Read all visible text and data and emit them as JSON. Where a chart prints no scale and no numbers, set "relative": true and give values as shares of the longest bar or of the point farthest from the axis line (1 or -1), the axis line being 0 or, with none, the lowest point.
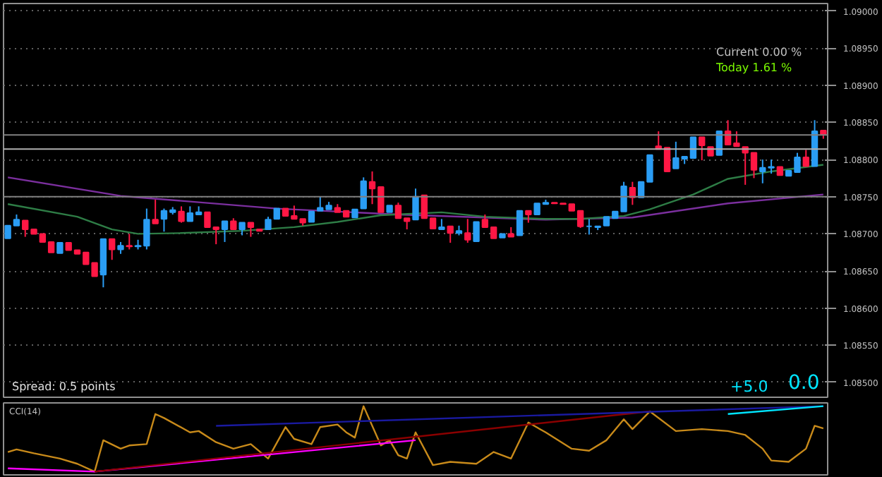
{
  "chart_data": [
    {
      "type": "candlestick",
      "categories": [
        null,
        null,
        null,
        null,
        null,
        null,
        null,
        null,
        null,
        null,
        null,
        null,
        null,
        null,
        null,
        null,
        null,
        null,
        null,
        null,
        null,
        null,
        null,
        null,
        null,
        null,
        null,
        null,
        null,
        null,
        null,
        null,
        null,
        null,
        null,
        null,
        null,
        null,
        null,
        null,
        null,
        null,
        null,
        null,
        null,
        null,
        null,
        null,
        null,
        null,
        null,
        null,
        null,
        null,
        null,
        null,
        null,
        null,
        null,
        null,
        null,
        null,
        null,
        null,
        null,
        null,
        null,
        null,
        null,
        null,
        null,
        null,
        null,
        null,
        null,
        null,
        null,
        null,
        null,
        null,
        null,
        null,
        null,
        null,
        null,
        null,
        null,
        null,
        null,
        null,
        null,
        null,
        null,
        null,
        null
      ],
      "ohlc": [
        [
          1.08694,
          1.08711,
          1.08694,
          1.08711
        ],
        [
          1.08711,
          1.08726,
          1.08711,
          1.08719
        ],
        [
          1.08718,
          1.08718,
          1.08696,
          1.08706
        ],
        [
          1.08706,
          1.08706,
          1.087,
          1.087
        ],
        [
          1.087,
          1.087,
          1.08689,
          1.08689
        ],
        [
          1.08689,
          1.08689,
          1.08675,
          1.08675
        ],
        [
          1.08674,
          1.08688,
          1.08674,
          1.08688
        ],
        [
          1.08688,
          1.08688,
          1.08678,
          1.08678
        ],
        [
          1.08678,
          1.08678,
          1.08673,
          1.08673
        ],
        [
          1.08675,
          1.08675,
          1.08659,
          1.08659
        ],
        [
          1.08661,
          1.08661,
          1.08643,
          1.08643
        ],
        [
          1.08645,
          1.08693,
          1.08628,
          1.08693
        ],
        [
          1.08693,
          1.08693,
          1.08665,
          1.08679
        ],
        [
          1.08679,
          1.08689,
          1.08673,
          1.08684
        ],
        [
          1.08684,
          1.087,
          1.08679,
          1.08683
        ],
        [
          1.08683,
          1.08692,
          1.08679,
          1.08684
        ],
        [
          1.08684,
          1.08734,
          1.08679,
          1.08719
        ],
        [
          1.08719,
          1.08746,
          1.08714,
          1.08714
        ],
        [
          1.0872,
          1.08734,
          1.08703,
          1.08731
        ],
        [
          1.08729,
          1.08736,
          1.08726,
          1.08732
        ],
        [
          1.0873,
          1.08737,
          1.08715,
          1.08717
        ],
        [
          1.08717,
          1.08737,
          1.08717,
          1.08728
        ],
        [
          1.08726,
          1.08737,
          1.08726,
          1.08729
        ],
        [
          1.08729,
          1.08729,
          1.08709,
          1.08709
        ],
        [
          1.08709,
          1.08709,
          1.08686,
          1.08706
        ],
        [
          1.08706,
          1.08717,
          1.08689,
          1.08717
        ],
        [
          1.08717,
          1.08721,
          1.08706,
          1.08706
        ],
        [
          1.08706,
          1.08715,
          1.08698,
          1.08715
        ],
        [
          1.08715,
          1.08715,
          1.08696,
          1.08709
        ],
        [
          1.08706,
          1.08706,
          1.08704,
          1.08704
        ],
        [
          1.08706,
          1.08723,
          1.08706,
          1.08719
        ],
        [
          1.0872,
          1.08734,
          1.0872,
          1.08734
        ],
        [
          1.08734,
          1.08734,
          1.08724,
          1.08724
        ],
        [
          1.08724,
          1.08738,
          1.0872,
          1.0872
        ],
        [
          1.0872,
          1.0872,
          1.08711,
          1.08715
        ],
        [
          1.08716,
          1.0873,
          1.08716,
          1.0873
        ],
        [
          1.08731,
          1.0875,
          1.08731,
          1.08735
        ],
        [
          1.08733,
          1.08743,
          1.08733,
          1.08738
        ],
        [
          1.08735,
          1.0874,
          1.08729,
          1.08729
        ],
        [
          1.08731,
          1.08731,
          1.08723,
          1.08723
        ],
        [
          1.08722,
          1.08733,
          1.08722,
          1.08733
        ],
        [
          1.08734,
          1.08776,
          1.08734,
          1.08771
        ],
        [
          1.0877,
          1.08784,
          1.0874,
          1.08761
        ],
        [
          1.08763,
          1.08763,
          1.08729,
          1.08729
        ],
        [
          1.08729,
          1.08738,
          1.08729,
          1.08738
        ],
        [
          1.08738,
          1.08742,
          1.08721,
          1.08721
        ],
        [
          1.08721,
          1.08721,
          1.08706,
          1.08717
        ],
        [
          1.08719,
          1.08761,
          1.08719,
          1.0875
        ],
        [
          1.08752,
          1.08752,
          1.08721,
          1.08721
        ],
        [
          1.08721,
          1.08721,
          1.08707,
          1.08707
        ],
        [
          1.08706,
          1.0872,
          1.08706,
          1.08709
        ],
        [
          1.0871,
          1.0871,
          1.08688,
          1.08701
        ],
        [
          1.08701,
          1.08711,
          1.08698,
          1.08704
        ],
        [
          1.08701,
          1.0872,
          1.08688,
          1.08692
        ],
        [
          1.0869,
          1.08716,
          1.0869,
          1.08716
        ],
        [
          1.08719,
          1.08726,
          1.08709,
          1.08709
        ],
        [
          1.08709,
          1.08709,
          1.08694,
          1.08694
        ],
        [
          1.08695,
          1.087,
          1.08695,
          1.087
        ],
        [
          1.087,
          1.08709,
          1.08696,
          1.08696
        ],
        [
          1.08698,
          1.08731,
          1.08698,
          1.08731
        ],
        [
          1.08731,
          1.08731,
          1.08715,
          1.08726
        ],
        [
          1.08726,
          1.08741,
          1.08726,
          1.08741
        ],
        [
          1.0874,
          1.08746,
          1.0874,
          1.08742
        ],
        [
          1.08742,
          1.08742,
          1.08741,
          1.08741
        ],
        [
          1.08741,
          1.08741,
          1.0874,
          1.0874
        ],
        [
          1.0874,
          1.0874,
          1.08731,
          1.08731
        ],
        [
          1.08731,
          1.08731,
          1.08708,
          1.0871
        ],
        [
          1.0871,
          1.0872,
          1.08699,
          1.0871
        ],
        [
          1.08709,
          1.0871,
          1.08705,
          1.0871
        ],
        [
          1.08711,
          1.08723,
          1.08711,
          1.08723
        ],
        [
          1.08721,
          1.0873,
          1.08721,
          1.0873
        ],
        [
          1.0873,
          1.0877,
          1.0873,
          1.08764
        ],
        [
          1.08762,
          1.0877,
          1.08739,
          1.08749
        ],
        [
          1.08749,
          1.0877,
          1.08749,
          1.0877
        ],
        [
          1.0877,
          1.08806,
          1.0877,
          1.08806
        ],
        [
          1.08818,
          1.08838,
          1.08814,
          1.08814
        ],
        [
          1.08816,
          1.08816,
          1.08784,
          1.08784
        ],
        [
          1.08788,
          1.08824,
          1.08788,
          1.08802
        ],
        [
          1.08801,
          1.08804,
          1.08794,
          1.08804
        ],
        [
          1.08802,
          1.0883,
          1.08802,
          1.0883
        ],
        [
          1.0883,
          1.0883,
          1.08799,
          1.08819
        ],
        [
          1.08817,
          1.08817,
          1.08805,
          1.08805
        ],
        [
          1.08806,
          1.08838,
          1.08806,
          1.08838
        ],
        [
          1.08838,
          1.08853,
          1.0882,
          1.0882
        ],
        [
          1.08822,
          1.08838,
          1.08818,
          1.08818
        ],
        [
          1.08817,
          1.08817,
          1.08766,
          1.08809
        ],
        [
          1.08809,
          1.08809,
          1.08775,
          1.08786
        ],
        [
          1.08784,
          1.088,
          1.08768,
          1.08789
        ],
        [
          1.08789,
          1.088,
          1.08781,
          1.0879
        ],
        [
          1.0879,
          1.0879,
          1.08779,
          1.08779
        ],
        [
          1.08778,
          1.08785,
          1.08778,
          1.08785
        ],
        [
          1.08783,
          1.08809,
          1.08783,
          1.08803
        ],
        [
          1.08803,
          1.08813,
          1.08791,
          1.08791
        ],
        [
          1.08791,
          1.08853,
          1.08791,
          1.08838
        ],
        [
          1.08839,
          1.08839,
          1.08828,
          1.08834
        ]
      ],
      "colors": [
        "#2a9df4",
        "#2a9df4",
        "#ff1744",
        "#ff1744",
        "#ff1744",
        "#ff1744",
        "#2a9df4",
        "#ff1744",
        "#ff1744",
        "#ff1744",
        "#ff1744",
        "#2a9df4",
        "#ff1744",
        "#2a9df4",
        "#ff1744",
        "#2a9df4",
        "#2a9df4",
        "#ff1744",
        "#2a9df4",
        "#2a9df4",
        "#ff1744",
        "#2a9df4",
        "#2a9df4",
        "#ff1744",
        "#ff1744",
        "#2a9df4",
        "#ff1744",
        "#2a9df4",
        "#ff1744",
        "#ff1744",
        "#2a9df4",
        "#2a9df4",
        "#ff1744",
        "#ff1744",
        "#ff1744",
        "#2a9df4",
        "#2a9df4",
        "#2a9df4",
        "#ff1744",
        "#ff1744",
        "#2a9df4",
        "#2a9df4",
        "#ff1744",
        "#ff1744",
        "#2a9df4",
        "#ff1744",
        "#ff1744",
        "#2a9df4",
        "#ff1744",
        "#ff1744",
        "#2a9df4",
        "#ff1744",
        "#2a9df4",
        "#ff1744",
        "#2a9df4",
        "#ff1744",
        "#ff1744",
        "#2a9df4",
        "#ff1744",
        "#2a9df4",
        "#ff1744",
        "#2a9df4",
        "#2a9df4",
        "#ff1744",
        "#ff1744",
        "#ff1744",
        "#ff1744",
        "#2a9df4",
        "#2a9df4",
        "#2a9df4",
        "#2a9df4",
        "#2a9df4",
        "#ff1744",
        "#2a9df4",
        "#2a9df4",
        "#ff1744",
        "#ff1744",
        "#2a9df4",
        "#2a9df4",
        "#2a9df4",
        "#ff1744",
        "#ff1744",
        "#2a9df4",
        "#ff1744",
        "#ff1744",
        "#ff1744",
        "#ff1744",
        "#2a9df4",
        "#2a9df4",
        "#ff1744",
        "#2a9df4",
        "#2a9df4",
        "#ff1744",
        "#2a9df4",
        "#ff1744"
      ],
      "series": [
        {
          "type": "line",
          "color": "#7b2f9e",
          "values": [
            1.08776,
            null,
            null,
            null,
            null,
            null,
            null,
            null,
            null,
            null,
            null,
            null,
            null,
            1.08751,
            null,
            null,
            null,
            null,
            null,
            null,
            null,
            null,
            null,
            null,
            null,
            null,
            null,
            null,
            null,
            null,
            null,
            1.08734,
            null,
            null,
            null,
            null,
            null,
            null,
            null,
            null,
            null,
            null,
            null,
            null,
            null,
            1.08726,
            null,
            null,
            null,
            null,
            null,
            null,
            null,
            null,
            null,
            null,
            null,
            null,
            null,
            null,
            null,
            null,
            1.08719,
            null,
            null,
            null,
            null,
            null,
            null,
            null,
            null,
            null,
            1.08722,
            null,
            null,
            null,
            null,
            null,
            null,
            null,
            null,
            null,
            null,
            1.08741,
            null,
            null,
            null,
            null,
            null,
            null,
            null,
            null,
            null,
            null,
            1.08753
          ]
        },
        {
          "type": "line",
          "color": "#2e7d46",
          "values": [
            1.0874,
            null,
            null,
            null,
            null,
            null,
            null,
            null,
            1.08723,
            null,
            null,
            null,
            1.08706,
            null,
            null,
            1.087,
            null,
            null,
            null,
            null,
            1.08701,
            null,
            null,
            null,
            null,
            null,
            null,
            1.08704,
            null,
            null,
            null,
            null,
            null,
            1.08709,
            null,
            null,
            null,
            null,
            1.08716,
            null,
            null,
            null,
            null,
            1.08725,
            null,
            null,
            null,
            null,
            null,
            null,
            1.08729,
            null,
            null,
            null,
            null,
            1.08723,
            null,
            null,
            null,
            null,
            null,
            null,
            1.0872,
            null,
            null,
            null,
            1.0872,
            null,
            null,
            null,
            null,
            1.08724,
            null,
            null,
            1.08733,
            null,
            null,
            null,
            null,
            1.08753,
            null,
            null,
            null,
            1.08774,
            null,
            null,
            null,
            null,
            1.08784,
            null,
            null,
            null,
            null,
            null,
            1.08793
          ]
        }
      ],
      "ylim": [
        1.0848,
        1.0901
      ],
      "yticks": [
        {
          "value": 1.085,
          "label": "1.08500"
        },
        {
          "value": 1.0855,
          "label": "1.08550"
        },
        {
          "value": 1.086,
          "label": "1.08600"
        },
        {
          "value": 1.0865,
          "label": "1.08650"
        },
        {
          "value": 1.087,
          "label": "1.08700"
        },
        {
          "value": 1.0875,
          "label": "1.08750"
        },
        {
          "value": 1.088,
          "label": "1.08800"
        },
        {
          "value": 1.0885,
          "label": "1.08850"
        },
        {
          "value": 1.089,
          "label": "1.08900"
        },
        {
          "value": 1.0895,
          "label": "1.08950"
        },
        {
          "value": 1.09,
          "label": "1.09000"
        }
      ],
      "grid": "y",
      "tick_labels": "y",
      "ref_lines": [
        {
          "axis": "y",
          "value": 1.08833,
          "color": "#808080"
        },
        {
          "axis": "y",
          "value": 1.08814,
          "color": "#b0b0b0"
        },
        {
          "axis": "y",
          "value": 1.0875,
          "color": "#808080"
        }
      ],
      "annotations": [
        "Current 0.00 %",
        "Today 1.61 %",
        "Spread: 0.5 points",
        "0.0",
        "+5.0"
      ]
    },
    {
      "type": "line",
      "title": "CCI(14)",
      "relative": true,
      "tick_labels": false,
      "categories": [
        null,
        null,
        null,
        null,
        null,
        null,
        null,
        null,
        null,
        null,
        null,
        null,
        null,
        null,
        null,
        null,
        null,
        null,
        null,
        null,
        null,
        null,
        null,
        null,
        null,
        null,
        null,
        null,
        null,
        null,
        null,
        null,
        null,
        null,
        null,
        null,
        null,
        null,
        null,
        null,
        null,
        null,
        null,
        null,
        null,
        null,
        null,
        null,
        null,
        null,
        null,
        null,
        null,
        null,
        null,
        null,
        null,
        null,
        null,
        null,
        null,
        null,
        null,
        null,
        null,
        null,
        null,
        null,
        null,
        null,
        null,
        null,
        null,
        null,
        null,
        null,
        null,
        null,
        null,
        null,
        null,
        null,
        null,
        null,
        null,
        null,
        null,
        null,
        null,
        null,
        null,
        null,
        null,
        null,
        null
      ],
      "series": [
        {
          "color": "#c88a1a",
          "values": [
            0.3,
            0.34,
            null,
            0.28,
            null,
            null,
            0.2,
            null,
            0.12,
            null,
            0,
            0.48,
            null,
            0.35,
            0.4,
            null,
            0.42,
            0.88,
            0.82,
            null,
            null,
            0.6,
            0.62,
            null,
            0.45,
            null,
            0.35,
            null,
            0.42,
            null,
            0.2,
            null,
            0.68,
            0.5,
            null,
            0.42,
            0.68,
            null,
            0.72,
            0.6,
            0.52,
            1.0,
            null,
            0.4,
            0.48,
            0.25,
            0.2,
            0.6,
            null,
            0.1,
            null,
            0.15,
            null,
            null,
            0.12,
            null,
            0.3,
            null,
            0.2,
            null,
            0.75,
            null,
            0.6,
            null,
            null,
            0.35,
            null,
            0.32,
            null,
            0.48,
            null,
            0.8,
            0.65,
            null,
            0.92,
            null,
            null,
            0.62,
            null,
            null,
            0.65,
            null,
            null,
            0.62,
            null,
            0.56,
            null,
            0.35,
            0.17,
            null,
            0.15,
            null,
            0.35,
            0.7,
            0.66
          ]
        },
        {
          "color": "#ff00ff",
          "values": [
            0.05,
            null,
            null,
            null,
            null,
            null,
            null,
            null,
            null,
            null,
            0,
            null,
            null,
            null,
            null,
            null,
            null,
            null,
            null,
            null,
            null,
            null,
            null,
            null,
            null,
            null,
            null,
            null,
            null,
            null,
            null,
            null,
            null,
            null,
            null,
            null,
            null,
            null,
            null,
            null,
            null,
            null,
            null,
            null,
            null,
            null,
            null,
            0.48,
            null,
            null,
            null,
            null,
            null,
            null,
            null,
            null,
            null,
            null,
            null,
            null,
            null,
            null,
            null,
            null,
            null,
            null,
            null,
            null,
            null,
            null,
            null,
            null,
            null,
            null,
            null,
            null,
            null,
            null,
            null,
            null,
            null,
            null,
            null,
            null,
            null,
            null,
            null,
            null,
            null,
            null,
            null,
            null,
            null,
            null,
            null
          ]
        },
        {
          "color": "#8b0000",
          "values": [
            null,
            null,
            null,
            null,
            null,
            null,
            null,
            null,
            null,
            null,
            0,
            null,
            null,
            null,
            null,
            null,
            null,
            null,
            null,
            null,
            null,
            null,
            null,
            null,
            null,
            null,
            null,
            null,
            null,
            null,
            null,
            null,
            null,
            null,
            null,
            null,
            null,
            null,
            null,
            null,
            null,
            null,
            null,
            null,
            null,
            null,
            null,
            null,
            null,
            null,
            null,
            null,
            null,
            null,
            null,
            null,
            null,
            null,
            null,
            null,
            null,
            null,
            null,
            null,
            null,
            null,
            null,
            null,
            null,
            null,
            null,
            null,
            null,
            null,
            0.92,
            null,
            null,
            null,
            null,
            null,
            null,
            null,
            null,
            null,
            null,
            null,
            null,
            null,
            null,
            null,
            null,
            null,
            null,
            null,
            null
          ]
        },
        {
          "color": "#1a1aa0",
          "values": [
            null,
            null,
            null,
            null,
            null,
            null,
            null,
            null,
            null,
            null,
            null,
            null,
            null,
            null,
            null,
            null,
            null,
            null,
            null,
            null,
            null,
            null,
            null,
            null,
            0.7,
            null,
            null,
            null,
            null,
            null,
            null,
            null,
            null,
            null,
            null,
            null,
            null,
            null,
            null,
            null,
            null,
            null,
            null,
            null,
            null,
            null,
            null,
            null,
            null,
            null,
            null,
            null,
            null,
            null,
            null,
            null,
            null,
            null,
            null,
            null,
            null,
            null,
            null,
            null,
            null,
            null,
            null,
            null,
            null,
            null,
            null,
            null,
            null,
            null,
            null,
            null,
            null,
            null,
            null,
            null,
            null,
            null,
            null,
            null,
            null,
            null,
            null,
            null,
            null,
            null,
            null,
            null,
            null,
            null,
            1.0
          ]
        },
        {
          "color": "#00e5ff",
          "values": [
            null,
            null,
            null,
            null,
            null,
            null,
            null,
            null,
            null,
            null,
            null,
            null,
            null,
            null,
            null,
            null,
            null,
            null,
            null,
            null,
            null,
            null,
            null,
            null,
            null,
            null,
            null,
            null,
            null,
            null,
            null,
            null,
            null,
            null,
            null,
            null,
            null,
            null,
            null,
            null,
            null,
            null,
            null,
            null,
            null,
            null,
            null,
            null,
            null,
            null,
            null,
            null,
            null,
            null,
            null,
            null,
            null,
            null,
            null,
            null,
            null,
            null,
            null,
            null,
            null,
            null,
            null,
            null,
            null,
            null,
            null,
            null,
            null,
            null,
            null,
            null,
            null,
            null,
            null,
            null,
            null,
            null,
            null,
            0.88,
            null,
            null,
            null,
            null,
            null,
            null,
            null,
            null,
            null,
            null,
            1.0
          ]
        }
      ]
    }
  ]
}
